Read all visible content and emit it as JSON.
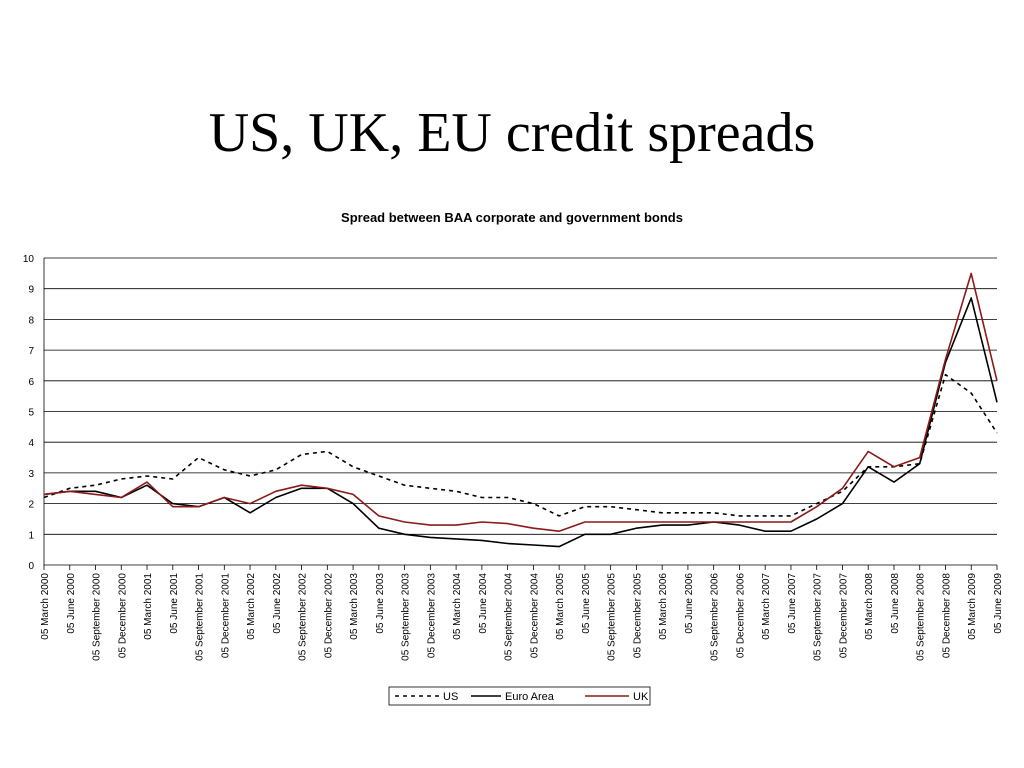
{
  "slide": {
    "title": "US, UK, EU credit spreads"
  },
  "chart_data": {
    "type": "line",
    "title": "Spread between BAA corporate and government bonds",
    "xlabel": "",
    "ylabel": "",
    "ylim": [
      0,
      10
    ],
    "yticks": [
      0,
      1,
      2,
      3,
      4,
      5,
      6,
      7,
      8,
      9,
      10
    ],
    "grid": true,
    "legend_position": "bottom",
    "x": [
      "05 March 2000",
      "05 June 2000",
      "05 September 2000",
      "05 December 2000",
      "05 March 2001",
      "05 June 2001",
      "05 September 2001",
      "05 December 2001",
      "05 March 2002",
      "05 June 2002",
      "05 September 2002",
      "05 December 2002",
      "05 March 2003",
      "05 June 2003",
      "05 September 2003",
      "05 December 2003",
      "05 March 2004",
      "05 June 2004",
      "05 September 2004",
      "05 December 2004",
      "05 March 2005",
      "05 June 2005",
      "05 September 2005",
      "05 December 2005",
      "05 March 2006",
      "05 June 2006",
      "05 September 2006",
      "05 December 2006",
      "05 March 2007",
      "05 June 2007",
      "05 September 2007",
      "05 December 2007",
      "05 March 2008",
      "05 June 2008",
      "05 September 2008",
      "05 December 2008",
      "05 March 2009",
      "05 June 2009"
    ],
    "series": [
      {
        "name": "US",
        "color": "#000000",
        "dash": "4,4",
        "values": [
          2.2,
          2.5,
          2.6,
          2.8,
          2.9,
          2.8,
          3.5,
          3.1,
          2.9,
          3.1,
          3.6,
          3.7,
          3.2,
          2.9,
          2.6,
          2.5,
          2.4,
          2.2,
          2.2,
          2.0,
          1.6,
          1.9,
          1.9,
          1.8,
          1.7,
          1.7,
          1.7,
          1.6,
          1.6,
          1.6,
          2.0,
          2.4,
          3.2,
          3.2,
          3.3,
          6.2,
          5.6,
          4.3
        ]
      },
      {
        "name": "Euro Area",
        "color": "#000000",
        "dash": "",
        "values": [
          2.3,
          2.4,
          2.4,
          2.2,
          2.6,
          2.0,
          1.9,
          2.2,
          1.7,
          2.2,
          2.5,
          2.5,
          2.0,
          1.2,
          1.0,
          0.9,
          0.85,
          0.8,
          0.7,
          0.65,
          0.6,
          1.0,
          1.0,
          1.2,
          1.3,
          1.3,
          1.4,
          1.3,
          1.1,
          1.1,
          1.5,
          2.0,
          3.2,
          2.7,
          3.3,
          6.6,
          8.7,
          5.3
        ]
      },
      {
        "name": "UK",
        "color": "#8b1a1a",
        "dash": "",
        "values": [
          2.3,
          2.4,
          2.3,
          2.2,
          2.7,
          1.9,
          1.9,
          2.2,
          2.0,
          2.4,
          2.6,
          2.5,
          2.3,
          1.6,
          1.4,
          1.3,
          1.3,
          1.4,
          1.35,
          1.2,
          1.1,
          1.4,
          1.4,
          1.4,
          1.4,
          1.4,
          1.4,
          1.4,
          1.4,
          1.4,
          1.9,
          2.5,
          3.7,
          3.2,
          3.5,
          6.7,
          9.5,
          6.0
        ]
      }
    ]
  }
}
